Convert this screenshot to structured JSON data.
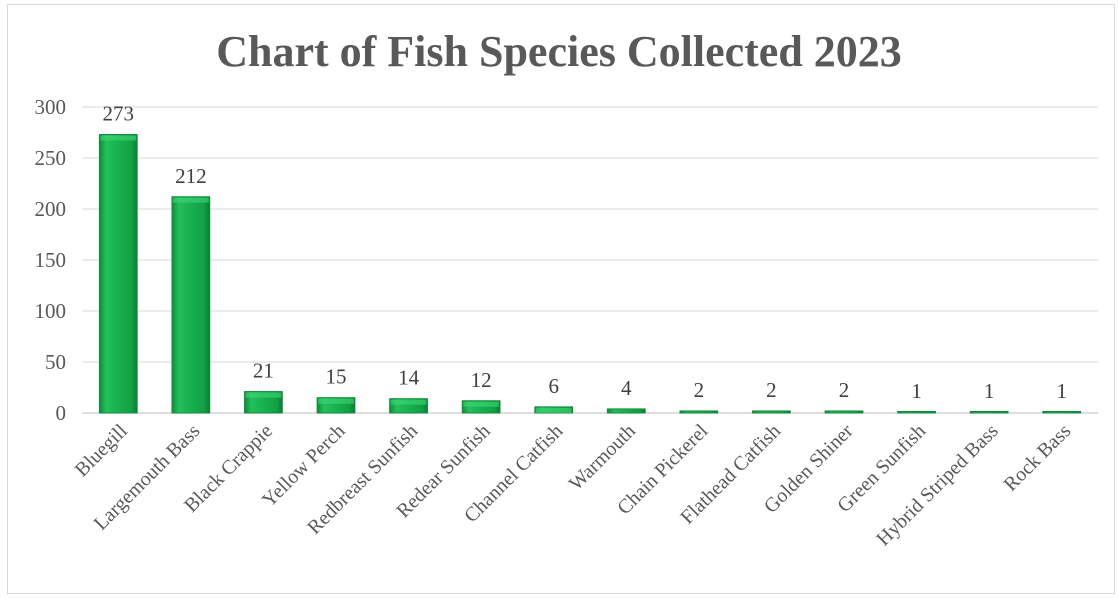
{
  "chart_data": {
    "type": "bar",
    "title": "Chart of Fish Species Collected 2023",
    "xlabel": "",
    "ylabel": "",
    "categories": [
      "Bluegill",
      "Largemouth Bass",
      "Black Crappie",
      "Yellow Perch",
      "Redbreast Sunfish",
      "Redear Sunfish",
      "Channel Catfish",
      "Warmouth",
      "Chain Pickerel",
      "Flathead Catfish",
      "Golden Shiner",
      "Green Sunfish",
      "Hybrid Striped Bass",
      "Rock Bass"
    ],
    "values": [
      273,
      212,
      21,
      15,
      14,
      12,
      6,
      4,
      2,
      2,
      2,
      1,
      1,
      1
    ],
    "ylim": [
      0,
      300
    ],
    "yticks": [
      0,
      50,
      100,
      150,
      200,
      250,
      300
    ],
    "grid": true,
    "legend": "none",
    "bar_color": "#1db954",
    "bar_edge_color": "#0f8a3a"
  }
}
